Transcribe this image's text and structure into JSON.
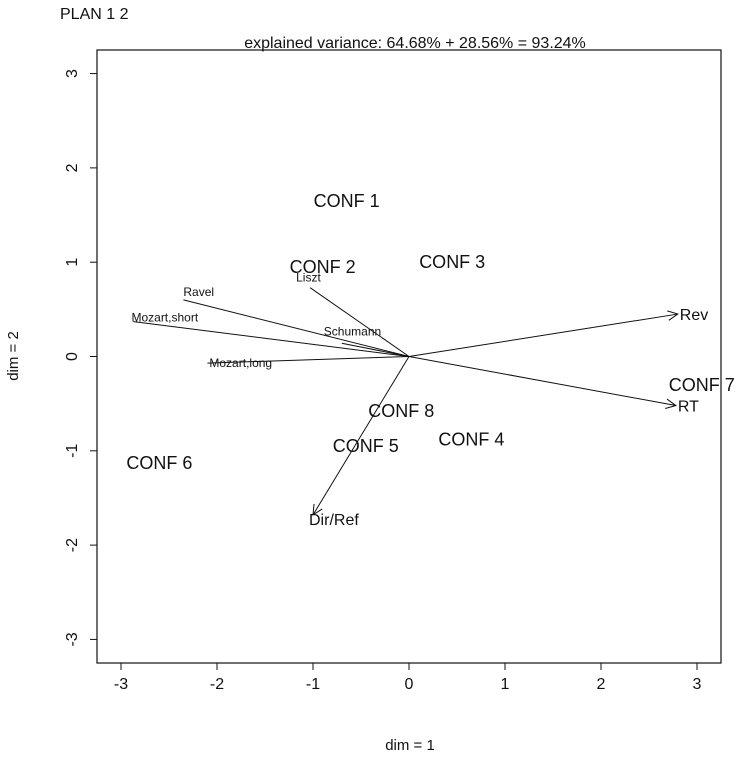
{
  "page": {
    "title": "PLAN  1 2"
  },
  "chart_data": {
    "type": "scatter",
    "subtitle": "explained variance:  64.68% + 28.56%  = 93.24%",
    "xlabel": "dim = 1",
    "ylabel": "dim = 2",
    "xlim": [
      -3.25,
      3.25
    ],
    "ylim": [
      -3.25,
      3.25
    ],
    "xticks": [
      -3,
      -2,
      -1,
      0,
      1,
      2,
      3
    ],
    "yticks": [
      -3,
      -2,
      -1,
      0,
      1,
      2,
      3
    ],
    "grid": false,
    "points": [
      {
        "label": "CONF 1",
        "x": -0.65,
        "y": 1.65
      },
      {
        "label": "CONF 2",
        "x": -0.9,
        "y": 0.95
      },
      {
        "label": "CONF 3",
        "x": 0.45,
        "y": 1.0
      },
      {
        "label": "CONF 4",
        "x": 0.65,
        "y": -0.88
      },
      {
        "label": "CONF 5",
        "x": -0.45,
        "y": -0.95
      },
      {
        "label": "CONF 6",
        "x": -2.6,
        "y": -1.13
      },
      {
        "label": "CONF 7",
        "x": 3.05,
        "y": -0.3
      },
      {
        "label": "CONF 8",
        "x": -0.08,
        "y": -0.58
      }
    ],
    "vectors": [
      {
        "label": "Rev",
        "x": 2.8,
        "y": 0.45,
        "arrowhead": true
      },
      {
        "label": "RT",
        "x": 2.78,
        "y": -0.52,
        "arrowhead": true
      },
      {
        "label": "Dir/Ref",
        "x": -1.0,
        "y": -1.68,
        "arrowhead": true
      },
      {
        "label": "Ravel",
        "x": -2.35,
        "y": 0.6,
        "arrowhead": false
      },
      {
        "label": "Mozart,short",
        "x": -2.87,
        "y": 0.37,
        "arrowhead": false
      },
      {
        "label": "Mozart,long",
        "x": -2.1,
        "y": -0.07,
        "arrowhead": false
      },
      {
        "label": "Liszt",
        "x": -1.03,
        "y": 0.73,
        "arrowhead": false
      },
      {
        "label": "Schumann",
        "x": -0.7,
        "y": 0.14,
        "arrowhead": false
      }
    ]
  }
}
